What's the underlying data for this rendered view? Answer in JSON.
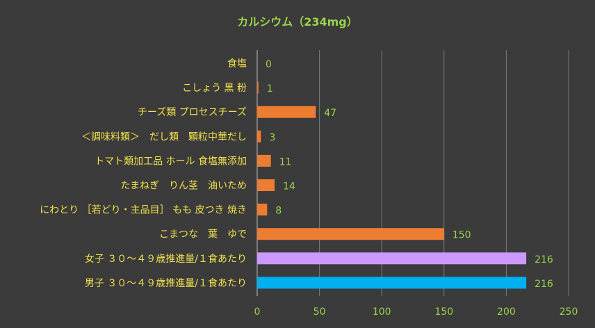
{
  "chart_data": {
    "type": "bar",
    "orientation": "horizontal",
    "title": "カルシウム（234mg）",
    "categories": [
      "食塩",
      "こしょう 黒 粉",
      "チーズ類 プロセスチーズ",
      "＜調味料類＞　だし類　顆粒中華だし",
      "トマト類加工品 ホール 食塩無添加",
      "たまねぎ　りん茎　油いため",
      "にわとり ［若どり・主品目］ もも 皮つき 焼き",
      "こまつな　葉　ゆで",
      "女子 ３０～４９歳推進量/１食あたり",
      "男子 ３０～４９歳推進量/１食あたり"
    ],
    "values": [
      0,
      1,
      47,
      3,
      11,
      14,
      8,
      150,
      216,
      216
    ],
    "value_labels": [
      "0",
      "1",
      "47",
      "3",
      "11",
      "14",
      "8",
      "150",
      "216",
      "216"
    ],
    "bar_colors": [
      "#ed7d31",
      "#ed7d31",
      "#ed7d31",
      "#ed7d31",
      "#ed7d31",
      "#ed7d31",
      "#ed7d31",
      "#ed7d31",
      "#cc99ff",
      "#00b0f0"
    ],
    "xlim": [
      0,
      250
    ],
    "ticks": [
      0,
      50,
      100,
      150,
      200,
      250
    ],
    "tick_labels": [
      "0",
      "50",
      "100",
      "150",
      "200",
      "250"
    ],
    "grid": true,
    "legend": "none",
    "colors": {
      "background": "#3b3b3b",
      "gridline": "#7a7a7a",
      "category_text": "#f2e14c",
      "value_text": "#9bd34a",
      "title_text": "#9bd34a"
    }
  }
}
